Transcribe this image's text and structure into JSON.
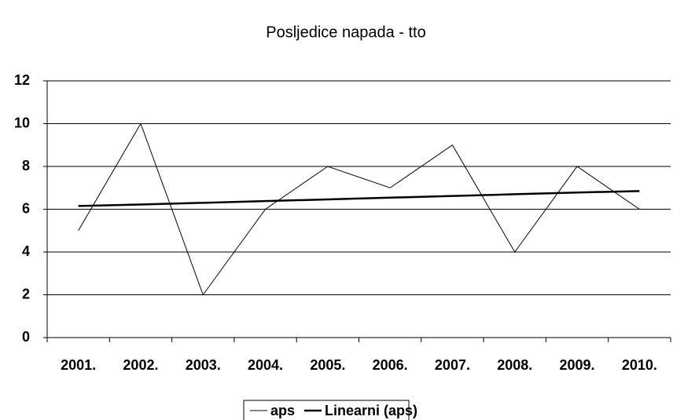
{
  "chart_data": {
    "type": "line",
    "title": "Posljedice napada - tto",
    "categories": [
      "2001.",
      "2002.",
      "2003.",
      "2004.",
      "2005.",
      "2006.",
      "2007.",
      "2008.",
      "2009.",
      "2010."
    ],
    "series": [
      {
        "name": "aps",
        "color": "#000000",
        "values": [
          5,
          10,
          2,
          6,
          8,
          7,
          9,
          4,
          8,
          6
        ]
      },
      {
        "name": "Linearni (aps)",
        "color": "#000000",
        "values": [
          6.15,
          6.22,
          6.3,
          6.38,
          6.46,
          6.54,
          6.62,
          6.7,
          6.78,
          6.85
        ]
      }
    ],
    "ylim": [
      0,
      12
    ],
    "yticks": [
      0,
      2,
      4,
      6,
      8,
      10,
      12
    ],
    "grid": true,
    "legend": "bottom"
  }
}
